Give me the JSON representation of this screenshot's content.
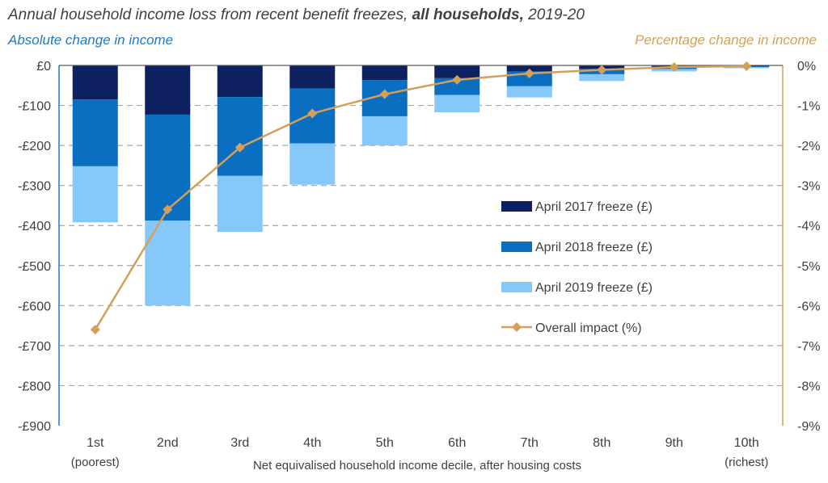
{
  "chart_data": {
    "type": "bar",
    "title": "Annual household income loss from recent benefit freezes,",
    "title_bold": "all households,",
    "title_suffix": "2019-20",
    "ylabel_left": "Absolute change in income",
    "ylabel_right": "Percentage change in income",
    "xlabel": "Net equivalised household income decile, after housing costs",
    "categories": [
      "1st",
      "2nd",
      "3rd",
      "4th",
      "5th",
      "6th",
      "7th",
      "8th",
      "9th",
      "10th"
    ],
    "category_sublabels": [
      "(poorest)",
      "",
      "",
      "",
      "",
      "",
      "",
      "",
      "",
      "(richest)"
    ],
    "left_ticks": [
      "£0",
      "-£100",
      "-£200",
      "-£300",
      "-£400",
      "-£500",
      "-£600",
      "-£700",
      "-£800",
      "-£900"
    ],
    "right_ticks": [
      "0%",
      "-1%",
      "-2%",
      "-3%",
      "-4%",
      "-5%",
      "-6%",
      "-7%",
      "-8%",
      "-9%"
    ],
    "ylim_left": [
      -900,
      0
    ],
    "ylim_right": [
      -9,
      0
    ],
    "grid": true,
    "legend_position": "right-middle",
    "series": [
      {
        "name": "April 2017 freeze (£)",
        "kind": "stacked-bar",
        "color": "#0d2060",
        "values": [
          -85,
          -123,
          -79,
          -58,
          -37,
          -32,
          -15,
          -8,
          -4,
          -2
        ]
      },
      {
        "name": "April 2018 freeze (£)",
        "kind": "stacked-bar",
        "color": "#0a6fc0",
        "values": [
          -167,
          -265,
          -197,
          -137,
          -90,
          -42,
          -37,
          -14,
          -5,
          -2
        ]
      },
      {
        "name": "April 2019 freeze (£)",
        "kind": "stacked-bar",
        "color": "#86c8fa",
        "values": [
          -140,
          -212,
          -140,
          -103,
          -73,
          -43,
          -28,
          -17,
          -6,
          -3
        ]
      },
      {
        "name": "Overall impact (%)",
        "kind": "line",
        "axis": "right",
        "color": "#d4a057",
        "values": [
          -6.6,
          -3.6,
          -2.05,
          -1.2,
          -0.72,
          -0.36,
          -0.2,
          -0.11,
          -0.04,
          -0.02
        ]
      }
    ]
  }
}
